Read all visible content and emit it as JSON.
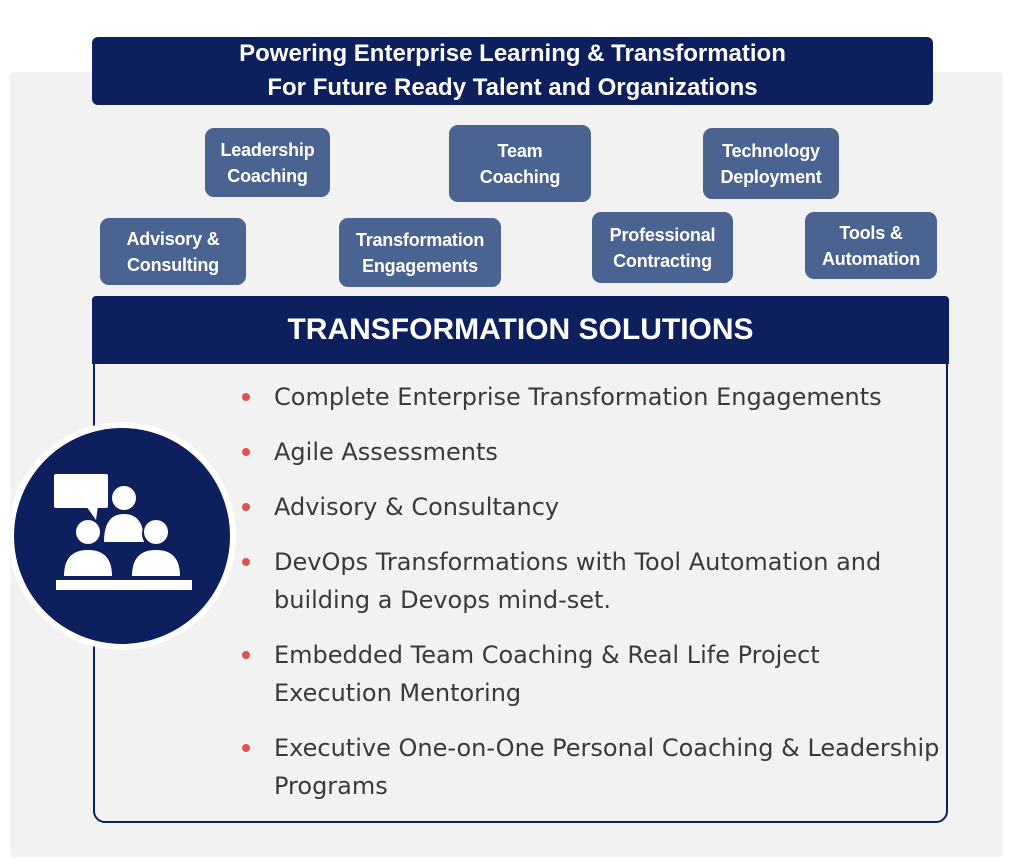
{
  "header": {
    "line1": "Powering Enterprise Learning & Transformation",
    "line2": "For Future Ready Talent and Organizations"
  },
  "services": [
    {
      "line1": "Leadership",
      "line2": "Coaching"
    },
    {
      "line1": "Team",
      "line2": "Coaching"
    },
    {
      "line1": "Technology",
      "line2": "Deployment"
    },
    {
      "line1": "Advisory &",
      "line2": "Consulting"
    },
    {
      "line1": "Transformation",
      "line2": "Engagements"
    },
    {
      "line1": "Professional",
      "line2": "Contracting"
    },
    {
      "line1": "Tools &",
      "line2": "Automation"
    }
  ],
  "solutions": {
    "title": "TRANSFORMATION SOLUTIONS",
    "items": [
      "Complete Enterprise Transformation Engagements",
      "Agile Assessments",
      "Advisory & Consultancy",
      "DevOps Transformations with Tool Automation and building a Devops mind-set.",
      "Embedded Team Coaching & Real Life Project Execution Mentoring",
      "Executive One-on-One Personal Coaching & Leadership Programs"
    ]
  },
  "icon": {
    "name": "meeting-people-icon"
  },
  "colors": {
    "navy": "#0d1f5c",
    "pill": "#4a6391",
    "bullet": "#e05252",
    "panel": "#f2f2f2",
    "text": "#3a3a3a"
  }
}
